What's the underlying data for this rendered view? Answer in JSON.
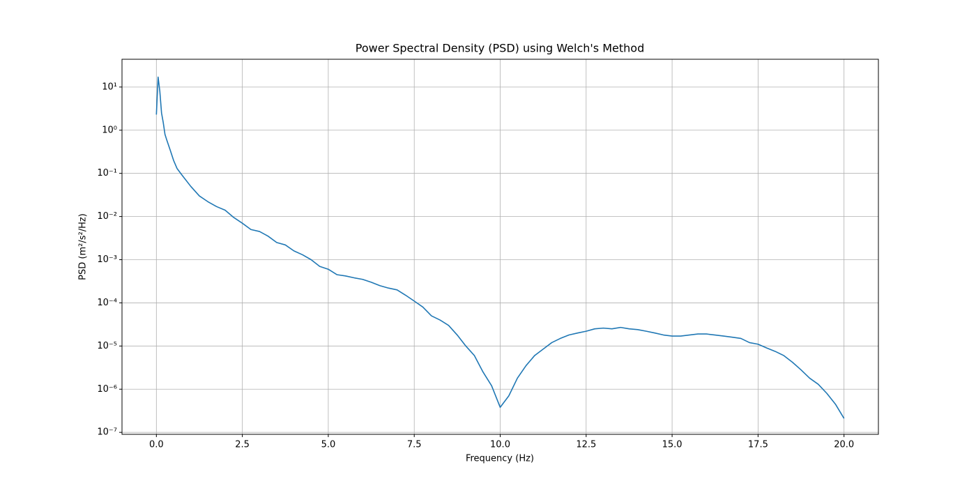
{
  "chart_data": {
    "type": "line",
    "title": "Power Spectral Density (PSD) using Welch's Method",
    "x_label": "Frequency (Hz)",
    "y_label": "PSD (m²/s²/Hz)",
    "x": [
      0,
      0.05,
      0.1,
      0.15,
      0.2,
      0.25,
      0.3,
      0.4,
      0.5,
      0.6,
      0.75,
      1.0,
      1.25,
      1.5,
      1.75,
      2.0,
      2.25,
      2.5,
      2.75,
      3.0,
      3.25,
      3.5,
      3.75,
      4.0,
      4.25,
      4.5,
      4.75,
      5.0,
      5.25,
      5.5,
      5.75,
      6.0,
      6.25,
      6.5,
      6.75,
      7.0,
      7.25,
      7.5,
      7.75,
      8.0,
      8.25,
      8.5,
      8.75,
      9.0,
      9.25,
      9.5,
      9.75,
      10.0,
      10.25,
      10.5,
      10.75,
      11.0,
      11.25,
      11.5,
      11.75,
      12.0,
      12.25,
      12.5,
      12.75,
      13.0,
      13.25,
      13.5,
      13.75,
      14.0,
      14.25,
      14.5,
      14.75,
      15.0,
      15.25,
      15.5,
      15.75,
      16.0,
      16.25,
      16.5,
      16.75,
      17.0,
      17.25,
      17.5,
      17.75,
      18.0,
      18.25,
      18.5,
      18.75,
      19.0,
      19.25,
      19.5,
      19.75,
      20.0
    ],
    "series": [
      {
        "name": "PSD",
        "color": "#1f77b4",
        "values": [
          2.3,
          17,
          8,
          2.5,
          1.5,
          0.8,
          0.6,
          0.35,
          0.2,
          0.13,
          0.09,
          0.05,
          0.03,
          0.022,
          0.017,
          0.014,
          0.0095,
          0.007,
          0.005,
          0.0045,
          0.0035,
          0.0025,
          0.0022,
          0.0016,
          0.0013,
          0.001,
          0.0007,
          0.0006,
          0.00045,
          0.00042,
          0.00038,
          0.00035,
          0.0003,
          0.00025,
          0.00022,
          0.0002,
          0.00015,
          0.00011,
          8e-05,
          5e-05,
          4e-05,
          3e-05,
          1.8e-05,
          1e-05,
          6e-06,
          2.5e-06,
          1.2e-06,
          3.8e-07,
          7e-07,
          1.8e-06,
          3.5e-06,
          6e-06,
          8.5e-06,
          1.2e-05,
          1.5e-05,
          1.8e-05,
          2e-05,
          2.2e-05,
          2.5e-05,
          2.6e-05,
          2.5e-05,
          2.7e-05,
          2.5e-05,
          2.4e-05,
          2.2e-05,
          2e-05,
          1.8e-05,
          1.7e-05,
          1.7e-05,
          1.8e-05,
          1.9e-05,
          1.9e-05,
          1.8e-05,
          1.7e-05,
          1.6e-05,
          1.5e-05,
          1.2e-05,
          1.1e-05,
          9e-06,
          7.5e-06,
          6e-06,
          4.2e-06,
          2.8e-06,
          1.8e-06,
          1.3e-06,
          8e-07,
          4.5e-07,
          2.1e-07
        ]
      }
    ],
    "xlim": [
      -1,
      21
    ],
    "xticks": [
      {
        "value": 0,
        "label": "0.0"
      },
      2.5,
      {
        "value": 5,
        "label": "5.0"
      },
      7.5,
      {
        "value": 10,
        "label": "10.0"
      },
      12.5,
      {
        "value": 15,
        "label": "15.0"
      },
      17.5,
      {
        "value": 20,
        "label": "20.0"
      }
    ],
    "ylim": [
      9e-08,
      44
    ],
    "yticks": [
      {
        "value": 1e-07,
        "label": "10⁻⁷"
      },
      {
        "value": 1e-06,
        "label": "10⁻⁶"
      },
      {
        "value": 1e-05,
        "label": "10⁻⁵"
      },
      {
        "value": 0.0001,
        "label": "10⁻⁴"
      },
      {
        "value": 0.001,
        "label": "10⁻³"
      },
      {
        "value": 0.01,
        "label": "10⁻²"
      },
      {
        "value": 0.1,
        "label": "10⁻¹"
      },
      {
        "value": 1,
        "label": "10⁰"
      },
      {
        "value": 10,
        "label": "10¹"
      }
    ],
    "y_scale": "log",
    "grid": true
  }
}
